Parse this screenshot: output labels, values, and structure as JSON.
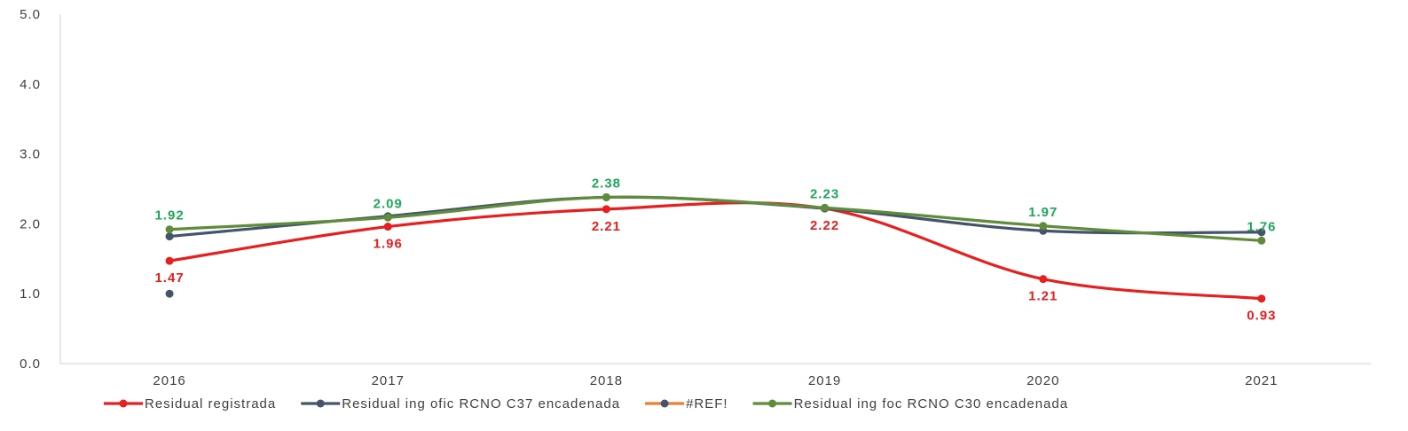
{
  "chart_data": {
    "type": "line",
    "categories": [
      "2016",
      "2017",
      "2018",
      "2019",
      "2020",
      "2021"
    ],
    "y_ticks": [
      "0.0",
      "1.0",
      "2.0",
      "3.0",
      "4.0",
      "5.0"
    ],
    "ylim": [
      0,
      5
    ],
    "grid": false,
    "legend_position": "bottom",
    "smooth": true,
    "series": [
      {
        "name": "Residual registrada",
        "color": "#e81f1f",
        "values": [
          1.47,
          1.96,
          2.21,
          2.22,
          1.21,
          0.93
        ],
        "labels": [
          "1.47",
          "1.96",
          "2.21",
          "2.22",
          "1.21",
          "0.93"
        ],
        "label_position": "below"
      },
      {
        "name": "Residual ing ofic RCNO C37 encadenada",
        "color": "#44546a",
        "values": [
          1.82,
          2.11,
          2.38,
          2.22,
          1.9,
          1.88
        ],
        "labels": [],
        "label_position": "none"
      },
      {
        "name": "#REF!",
        "color": "#ed7d31",
        "points": [
          {
            "category": "2016",
            "value": 1.0,
            "marker_color": "#44546a"
          }
        ],
        "labels": [],
        "label_position": "none"
      },
      {
        "name": "Residual ing foc  RCNO C30 encadenada",
        "color": "#5e8c3a",
        "label_color": "#1fa85a",
        "values": [
          1.92,
          2.09,
          2.38,
          2.23,
          1.97,
          1.76
        ],
        "labels": [
          "1.92",
          "2.09",
          "2.38",
          "2.23",
          "1.97",
          "1.76"
        ],
        "label_position": "above"
      }
    ]
  }
}
